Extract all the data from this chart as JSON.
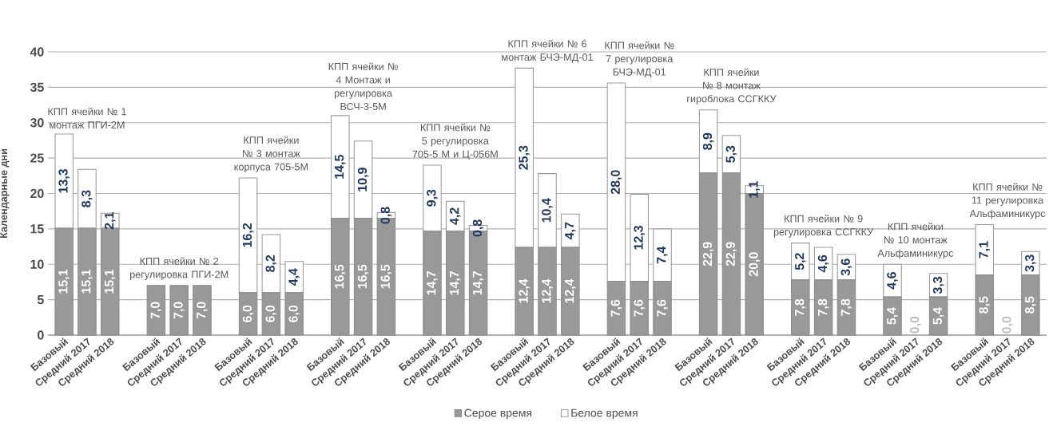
{
  "chart_data": {
    "type": "bar",
    "stacked": true,
    "ylabel": "Календарные дни",
    "ylim": [
      0,
      40
    ],
    "yticks": [
      0,
      5,
      10,
      15,
      20,
      25,
      30,
      35,
      40
    ],
    "grid": "y",
    "legend": "bottom",
    "categories": [
      "Базовый",
      "Средний 2017",
      "Средний 2018",
      null,
      "Базовый",
      "Средний 2017",
      "Средний 2018",
      null,
      "Базовый",
      "Средний 2017",
      "Средний 2018",
      null,
      "Базовый",
      "Средний 2017",
      "Средний 2018",
      null,
      "Базовый",
      "Средний 2017",
      "Средний 2018",
      null,
      "Базовый",
      "Средний 2017",
      "Средний 2018",
      null,
      "Базовый",
      "Средний 2017",
      "Средний 2018",
      null,
      "Базовый",
      "Средний 2017",
      "Средний 2018",
      null,
      "Базовый",
      "Средний 2017",
      "Средний 2018",
      null,
      "Базовый",
      "Средний 2017",
      "Средний 2018",
      null,
      "Базовый",
      "Средний 2017",
      "Средний 2018"
    ],
    "series": [
      {
        "name": "Серое время",
        "color": "#999999",
        "values": [
          15.1,
          15.1,
          15.1,
          null,
          7.0,
          7.0,
          7.0,
          null,
          6.0,
          6.0,
          6.0,
          null,
          16.5,
          16.5,
          16.5,
          null,
          14.7,
          14.7,
          14.7,
          null,
          12.4,
          12.4,
          12.4,
          null,
          7.6,
          7.6,
          7.6,
          null,
          22.9,
          22.9,
          20.0,
          null,
          7.8,
          7.8,
          7.8,
          null,
          5.4,
          0.0,
          5.4,
          null,
          8.5,
          0.0,
          8.5
        ],
        "value_labels": [
          "15,1",
          "15,1",
          "15,1",
          null,
          "7,0",
          "7,0",
          "7,0",
          null,
          "6,0",
          "6,0",
          "6,0",
          null,
          "16,5",
          "16,5",
          "16,5",
          null,
          "14,7",
          "14,7",
          "14,7",
          null,
          "12,4",
          "12,4",
          "12,4",
          null,
          "7,6",
          "7,6",
          "7,6",
          null,
          "22,9",
          "22,9",
          "20,0",
          null,
          "7,8",
          "7,8",
          "7,8",
          null,
          "5,4",
          "0,0",
          "5,4",
          null,
          "8,5",
          "0,0",
          "8,5"
        ]
      },
      {
        "name": "Белое время",
        "color": "#ffffff",
        "values": [
          13.3,
          8.3,
          2.1,
          null,
          null,
          null,
          null,
          null,
          16.2,
          8.2,
          4.4,
          null,
          14.5,
          10.9,
          0.8,
          null,
          9.3,
          4.2,
          0.8,
          null,
          25.3,
          10.4,
          4.7,
          null,
          28.0,
          12.3,
          7.4,
          null,
          8.9,
          5.3,
          1.1,
          null,
          5.2,
          4.6,
          3.6,
          null,
          4.6,
          0.0,
          3.3,
          null,
          7.1,
          0.0,
          3.3
        ],
        "value_labels": [
          "13,3",
          "8,3",
          "2,1",
          null,
          null,
          null,
          null,
          null,
          "16,2",
          "8,2",
          "4,4",
          null,
          "14,5",
          "10,9",
          "0,8",
          null,
          "9,3",
          "4,2",
          "0,8",
          null,
          "25,3",
          "10,4",
          "4,7",
          null,
          "28,0",
          "12,3",
          "7,4",
          null,
          "8,9",
          "5,3",
          "1,1",
          null,
          "5,2",
          "4,6",
          "3,6",
          null,
          "4,6",
          null,
          "3,3",
          null,
          "7,1",
          null,
          "3,3"
        ]
      }
    ],
    "annotations": [
      "КПП ячейки № 1 монтаж ПГИ-2М",
      "КПП ячейки № 2 регулировка ПГИ-2М",
      "КПП ячейки № 3 монтаж корпуса 705-5М",
      "КПП ячейки № 4 Монтаж и регулировка ВСЧ-3-5М",
      "КПП ячейки № 5 регулировка 705-5 М и Ц-056М",
      "КПП ячейки № 6 монтаж БЧЭ-МД-01",
      "КПП ячейки № 7 регулировка БЧЭ-МД-01",
      "КПП ячейки № 8 монтаж гироблока ССГККУ",
      "КПП ячейки № 9 регулировка ССГККУ",
      "КПП ячейки № 10 монтаж Альфаминикурс",
      "КПП ячейки № 11 регулировка Альфаминикурс"
    ]
  }
}
